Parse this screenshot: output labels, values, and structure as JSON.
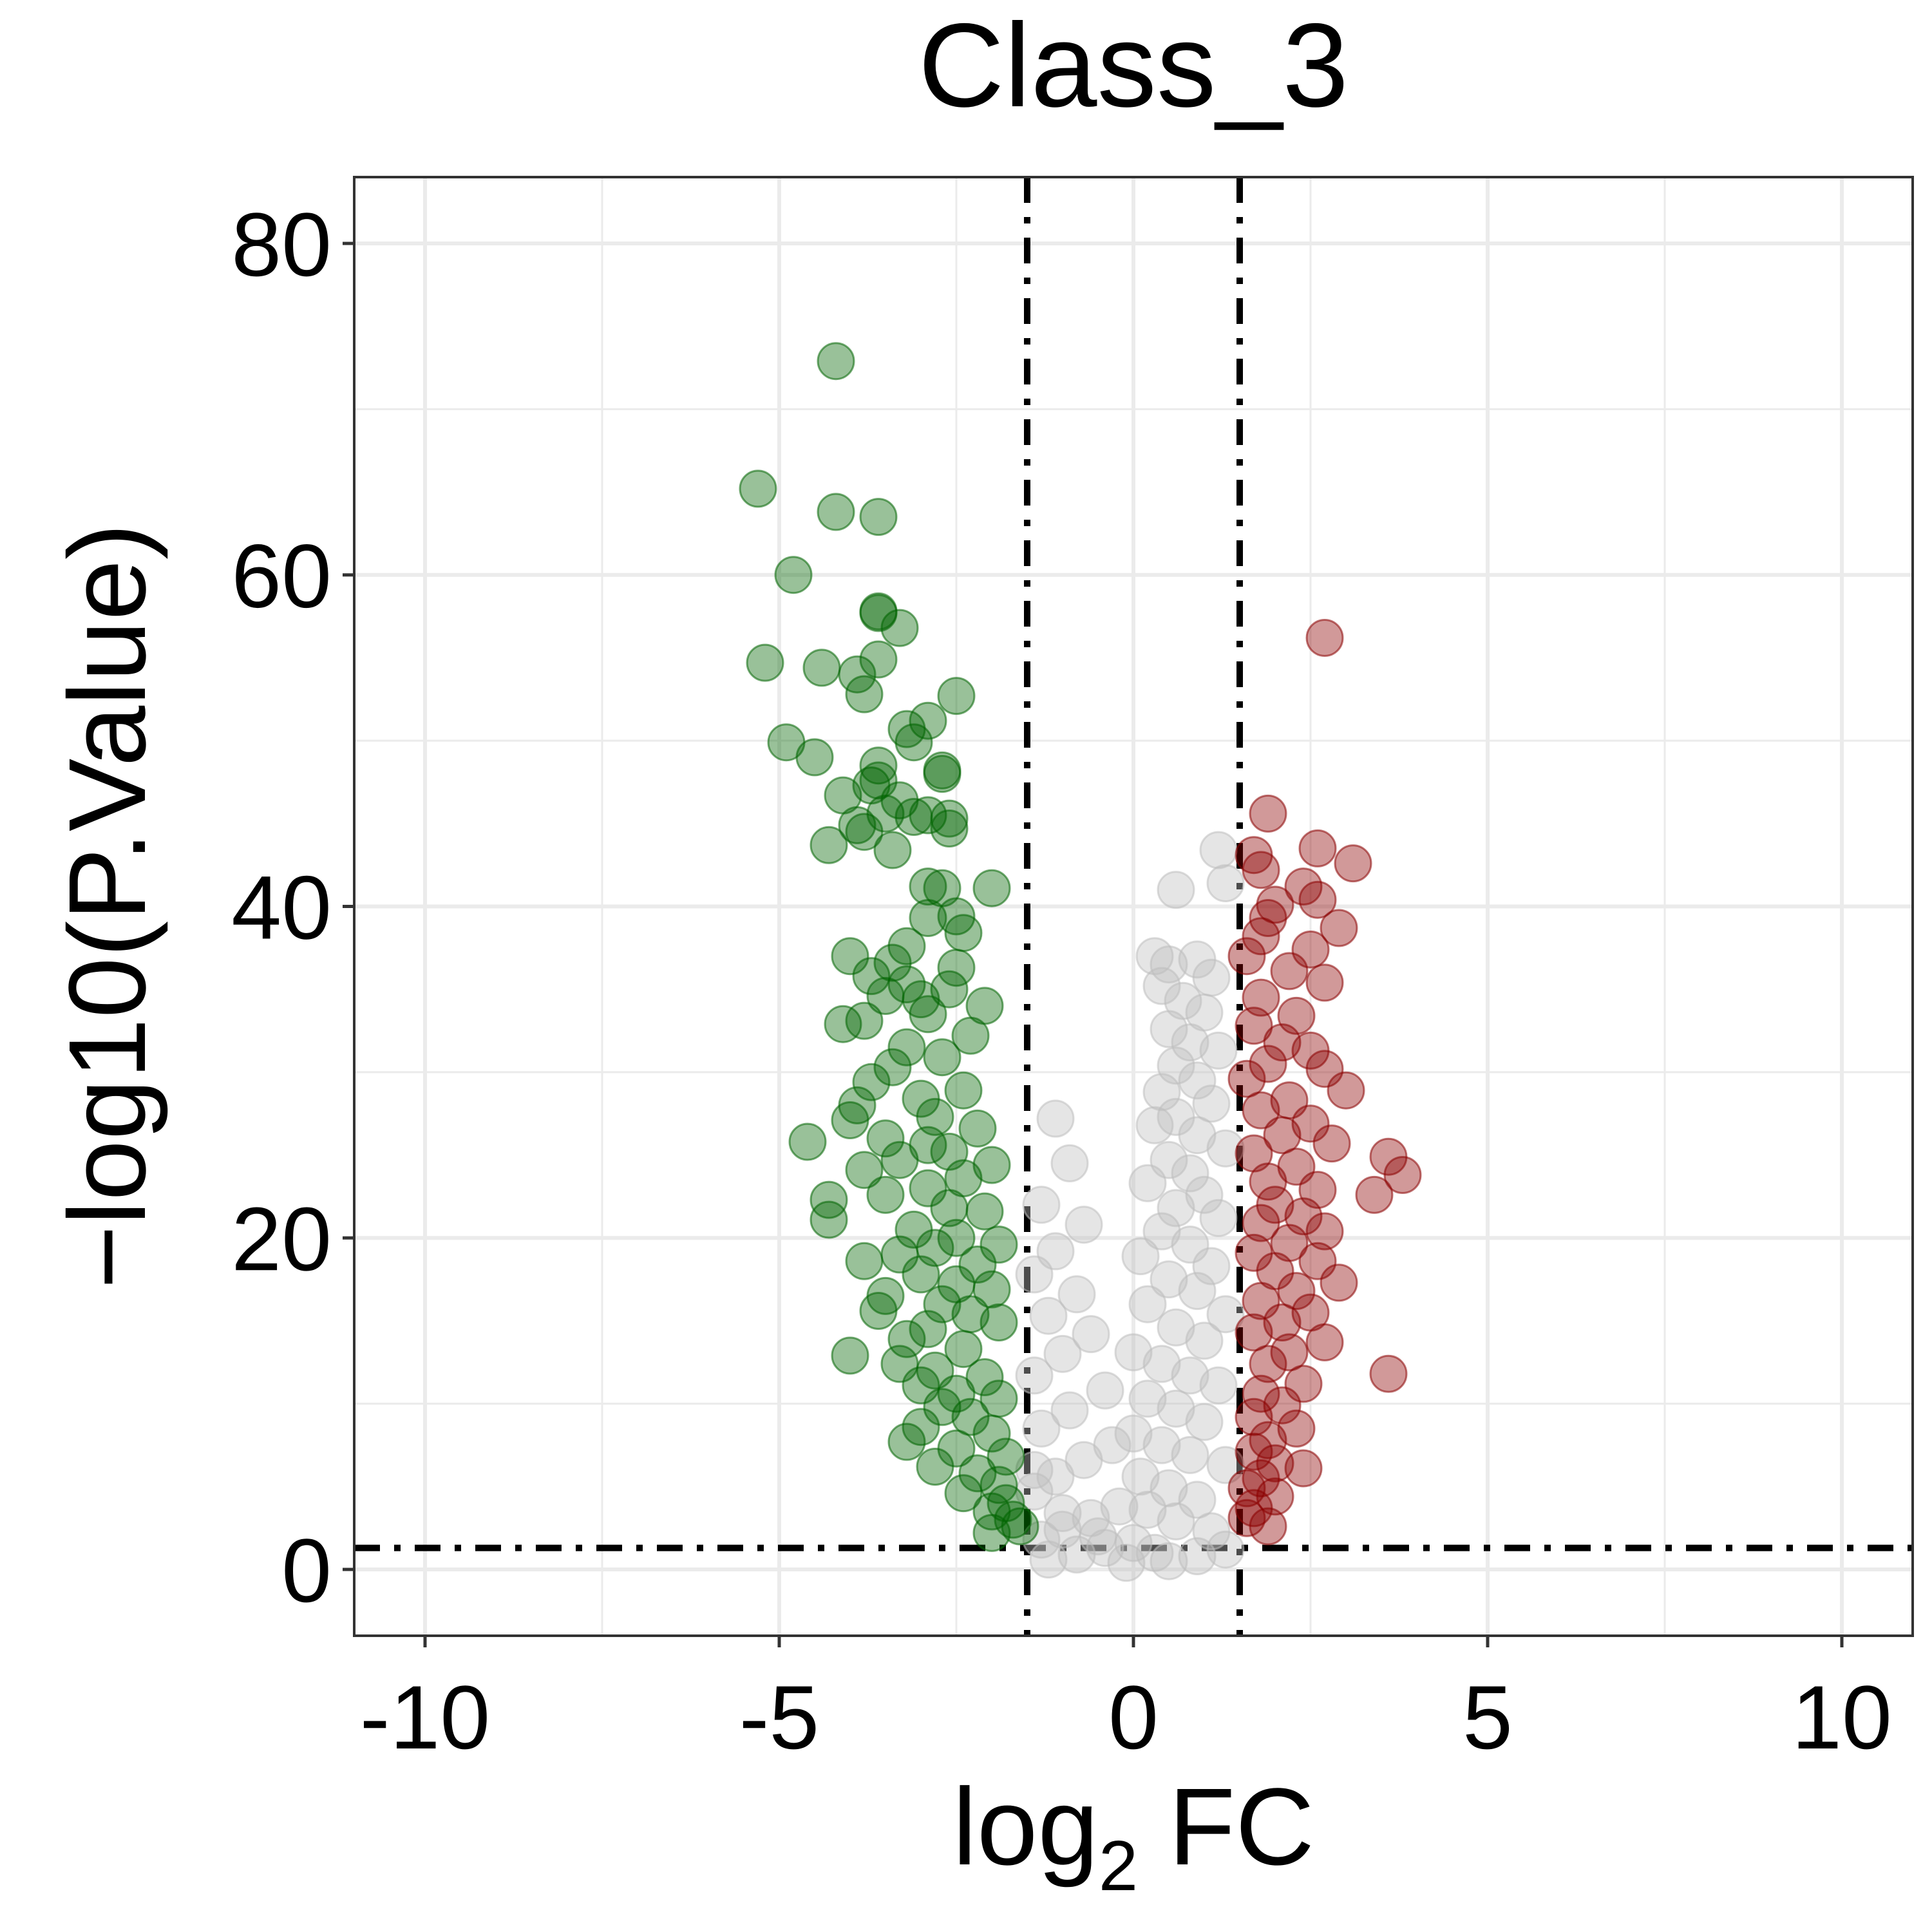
{
  "chart_data": {
    "type": "scatter",
    "title": "Class_3",
    "xlabel": "log2 FC",
    "xlabel_main": "log",
    "xlabel_sub": "2",
    "xlabel_tail": " FC",
    "ylabel": "−log10(P.Value)",
    "xlim": [
      -11,
      11
    ],
    "ylim": [
      -4,
      84
    ],
    "x_ticks": [
      -10,
      -5,
      0,
      5,
      10
    ],
    "y_ticks": [
      0,
      20,
      40,
      60,
      80
    ],
    "grid": true,
    "legend": "none",
    "thresholds": {
      "log2fc": [
        -1.5,
        1.5
      ],
      "neg_log10_p": 1.3
    },
    "colors": {
      "down": "#006400",
      "up": "#8B0000",
      "ns": "#BEBEBE",
      "grid": "#EBEBEB",
      "border": "#333333"
    },
    "series": [
      {
        "group": "down",
        "points": [
          [
            -4.2,
            72.9
          ],
          [
            -5.3,
            65.2
          ],
          [
            -4.2,
            63.8
          ],
          [
            -3.6,
            63.5
          ],
          [
            -4.8,
            60.0
          ],
          [
            -3.6,
            57.8
          ],
          [
            -3.6,
            57.7
          ],
          [
            -3.3,
            56.8
          ],
          [
            -5.2,
            54.7
          ],
          [
            -3.6,
            54.9
          ],
          [
            -4.4,
            54.4
          ],
          [
            -3.9,
            54.0
          ],
          [
            -3.8,
            52.8
          ],
          [
            -2.5,
            52.7
          ],
          [
            -2.9,
            51.2
          ],
          [
            -3.2,
            50.7
          ],
          [
            -3.1,
            49.9
          ],
          [
            -4.9,
            49.9
          ],
          [
            -4.5,
            49.0
          ],
          [
            -3.6,
            48.5
          ],
          [
            -2.7,
            48.2
          ],
          [
            -2.7,
            48.0
          ],
          [
            -3.6,
            47.6
          ],
          [
            -3.7,
            47.3
          ],
          [
            -4.1,
            46.7
          ],
          [
            -3.3,
            46.4
          ],
          [
            -3.5,
            45.6
          ],
          [
            -2.9,
            45.5
          ],
          [
            -3.1,
            45.4
          ],
          [
            -2.6,
            45.3
          ],
          [
            -3.9,
            44.9
          ],
          [
            -2.6,
            44.7
          ],
          [
            -3.8,
            44.5
          ],
          [
            -4.3,
            43.7
          ],
          [
            -3.4,
            43.4
          ],
          [
            -2.9,
            41.2
          ],
          [
            -2.7,
            41.1
          ],
          [
            -2.0,
            41.1
          ],
          [
            -2.5,
            39.4
          ],
          [
            -2.9,
            39.3
          ],
          [
            -2.4,
            38.4
          ],
          [
            -3.2,
            37.6
          ],
          [
            -4.0,
            37.0
          ],
          [
            -3.4,
            36.6
          ],
          [
            -2.5,
            36.3
          ],
          [
            -3.7,
            35.8
          ],
          [
            -3.2,
            35.3
          ],
          [
            -2.6,
            35.0
          ],
          [
            -3.5,
            34.6
          ],
          [
            -3.0,
            34.4
          ],
          [
            -2.1,
            34.0
          ],
          [
            -2.9,
            33.5
          ],
          [
            -3.8,
            33.1
          ],
          [
            -4.1,
            32.9
          ],
          [
            -2.3,
            32.2
          ],
          [
            -3.2,
            31.5
          ],
          [
            -2.7,
            30.9
          ],
          [
            -3.4,
            30.3
          ],
          [
            -3.7,
            29.4
          ],
          [
            -2.4,
            28.9
          ],
          [
            -3.0,
            28.4
          ],
          [
            -3.9,
            28.0
          ],
          [
            -2.8,
            27.3
          ],
          [
            -4.0,
            27.1
          ],
          [
            -2.2,
            26.6
          ],
          [
            -3.5,
            26.0
          ],
          [
            -2.9,
            25.6
          ],
          [
            -4.6,
            25.8
          ],
          [
            -2.6,
            25.2
          ],
          [
            -3.3,
            24.7
          ],
          [
            -2.0,
            24.4
          ],
          [
            -3.8,
            24.1
          ],
          [
            -2.4,
            23.6
          ],
          [
            -2.9,
            23.0
          ],
          [
            -3.5,
            22.6
          ],
          [
            -4.3,
            22.3
          ],
          [
            -2.6,
            21.8
          ],
          [
            -2.1,
            21.6
          ],
          [
            -4.3,
            21.1
          ],
          [
            -3.1,
            20.5
          ],
          [
            -2.5,
            20.0
          ],
          [
            -2.8,
            19.4
          ],
          [
            -1.9,
            19.6
          ],
          [
            -3.3,
            19.0
          ],
          [
            -3.8,
            18.6
          ],
          [
            -2.2,
            18.4
          ],
          [
            -3.0,
            17.8
          ],
          [
            -2.5,
            17.2
          ],
          [
            -2.0,
            16.9
          ],
          [
            -3.5,
            16.5
          ],
          [
            -2.7,
            16.0
          ],
          [
            -2.3,
            15.4
          ],
          [
            -3.6,
            15.6
          ],
          [
            -1.9,
            14.9
          ],
          [
            -2.9,
            14.5
          ],
          [
            -3.2,
            13.9
          ],
          [
            -2.4,
            13.3
          ],
          [
            -4.0,
            12.9
          ],
          [
            -3.3,
            12.4
          ],
          [
            -2.8,
            12.0
          ],
          [
            -2.1,
            11.6
          ],
          [
            -3.0,
            11.1
          ],
          [
            -2.5,
            10.6
          ],
          [
            -1.9,
            10.3
          ],
          [
            -2.7,
            9.8
          ],
          [
            -2.3,
            9.2
          ],
          [
            -3.0,
            8.6
          ],
          [
            -2.0,
            8.2
          ],
          [
            -3.2,
            7.7
          ],
          [
            -2.5,
            7.3
          ],
          [
            -1.8,
            6.8
          ],
          [
            -2.8,
            6.2
          ],
          [
            -2.2,
            5.8
          ],
          [
            -1.9,
            5.1
          ],
          [
            -2.4,
            4.6
          ],
          [
            -1.8,
            4.0
          ],
          [
            -2.0,
            3.5
          ],
          [
            -1.7,
            3.0
          ],
          [
            -1.6,
            2.6
          ],
          [
            -2.0,
            2.2
          ]
        ]
      },
      {
        "group": "up",
        "points": [
          [
            2.7,
            56.2
          ],
          [
            1.9,
            45.6
          ],
          [
            2.6,
            43.5
          ],
          [
            3.1,
            42.6
          ],
          [
            1.7,
            43.1
          ],
          [
            1.8,
            42.2
          ],
          [
            2.4,
            41.2
          ],
          [
            2.0,
            40.1
          ],
          [
            2.6,
            40.4
          ],
          [
            1.9,
            39.3
          ],
          [
            2.9,
            38.7
          ],
          [
            1.8,
            38.2
          ],
          [
            2.5,
            37.4
          ],
          [
            1.6,
            37.0
          ],
          [
            2.2,
            36.1
          ],
          [
            2.7,
            35.4
          ],
          [
            1.8,
            34.5
          ],
          [
            2.3,
            33.4
          ],
          [
            1.7,
            32.8
          ],
          [
            2.1,
            31.8
          ],
          [
            2.5,
            31.3
          ],
          [
            1.9,
            30.5
          ],
          [
            2.7,
            30.2
          ],
          [
            1.6,
            29.6
          ],
          [
            3.0,
            28.9
          ],
          [
            2.2,
            28.3
          ],
          [
            1.8,
            27.7
          ],
          [
            2.5,
            26.9
          ],
          [
            2.1,
            26.2
          ],
          [
            2.8,
            25.7
          ],
          [
            1.7,
            25.1
          ],
          [
            3.6,
            24.9
          ],
          [
            2.3,
            24.3
          ],
          [
            3.8,
            23.8
          ],
          [
            1.9,
            23.4
          ],
          [
            2.6,
            22.9
          ],
          [
            3.4,
            22.6
          ],
          [
            2.0,
            22.0
          ],
          [
            2.4,
            21.3
          ],
          [
            1.8,
            20.9
          ],
          [
            2.7,
            20.4
          ],
          [
            2.2,
            19.7
          ],
          [
            1.7,
            19.1
          ],
          [
            2.6,
            18.6
          ],
          [
            2.0,
            18.0
          ],
          [
            2.9,
            17.3
          ],
          [
            2.3,
            16.8
          ],
          [
            1.8,
            16.2
          ],
          [
            2.5,
            15.5
          ],
          [
            2.1,
            14.9
          ],
          [
            1.7,
            14.3
          ],
          [
            2.7,
            13.7
          ],
          [
            2.2,
            13.1
          ],
          [
            1.9,
            12.4
          ],
          [
            3.6,
            11.8
          ],
          [
            2.4,
            11.2
          ],
          [
            1.8,
            10.6
          ],
          [
            2.1,
            9.9
          ],
          [
            1.7,
            9.2
          ],
          [
            2.3,
            8.5
          ],
          [
            1.9,
            7.8
          ],
          [
            1.7,
            7.1
          ],
          [
            2.0,
            6.4
          ],
          [
            2.4,
            6.1
          ],
          [
            1.8,
            5.5
          ],
          [
            1.6,
            4.9
          ],
          [
            2.0,
            4.4
          ],
          [
            1.7,
            3.7
          ],
          [
            1.6,
            3.1
          ],
          [
            1.9,
            2.6
          ]
        ]
      },
      {
        "group": "ns",
        "points": [
          [
            1.2,
            43.4
          ],
          [
            1.3,
            41.4
          ],
          [
            0.6,
            41.0
          ],
          [
            0.3,
            37.0
          ],
          [
            0.5,
            36.5
          ],
          [
            0.9,
            36.8
          ],
          [
            1.1,
            35.7
          ],
          [
            0.4,
            35.2
          ],
          [
            0.7,
            34.3
          ],
          [
            1.0,
            33.6
          ],
          [
            0.5,
            32.6
          ],
          [
            0.8,
            31.8
          ],
          [
            1.2,
            31.3
          ],
          [
            0.6,
            30.4
          ],
          [
            0.9,
            29.5
          ],
          [
            0.4,
            28.8
          ],
          [
            1.1,
            28.1
          ],
          [
            0.6,
            27.3
          ],
          [
            0.3,
            26.8
          ],
          [
            0.9,
            26.2
          ],
          [
            1.3,
            25.4
          ],
          [
            0.5,
            24.7
          ],
          [
            0.8,
            23.9
          ],
          [
            0.2,
            23.3
          ],
          [
            1.0,
            22.6
          ],
          [
            0.6,
            21.8
          ],
          [
            1.2,
            21.2
          ],
          [
            0.4,
            20.4
          ],
          [
            0.8,
            19.6
          ],
          [
            0.1,
            18.9
          ],
          [
            1.1,
            18.3
          ],
          [
            0.5,
            17.5
          ],
          [
            0.9,
            16.8
          ],
          [
            0.2,
            16.0
          ],
          [
            1.3,
            15.4
          ],
          [
            0.6,
            14.6
          ],
          [
            1.0,
            13.8
          ],
          [
            0.0,
            13.1
          ],
          [
            0.4,
            12.4
          ],
          [
            0.8,
            11.7
          ],
          [
            1.2,
            11.1
          ],
          [
            0.2,
            10.3
          ],
          [
            0.6,
            9.7
          ],
          [
            1.0,
            8.9
          ],
          [
            0.0,
            8.2
          ],
          [
            0.4,
            7.5
          ],
          [
            0.8,
            6.9
          ],
          [
            1.3,
            6.3
          ],
          [
            0.1,
            5.6
          ],
          [
            0.5,
            4.9
          ],
          [
            0.9,
            4.2
          ],
          [
            0.2,
            3.6
          ],
          [
            0.6,
            2.9
          ],
          [
            1.1,
            2.3
          ],
          [
            0.0,
            1.6
          ],
          [
            0.3,
            1.0
          ],
          [
            -1.1,
            27.2
          ],
          [
            -0.9,
            24.5
          ],
          [
            -1.3,
            22.0
          ],
          [
            -0.7,
            20.8
          ],
          [
            -1.1,
            19.2
          ],
          [
            -1.4,
            17.8
          ],
          [
            -0.8,
            16.6
          ],
          [
            -1.2,
            15.3
          ],
          [
            -0.6,
            14.2
          ],
          [
            -1.0,
            13.0
          ],
          [
            -1.4,
            11.7
          ],
          [
            -0.4,
            10.8
          ],
          [
            -0.9,
            9.6
          ],
          [
            -1.3,
            8.5
          ],
          [
            -0.3,
            7.5
          ],
          [
            -0.7,
            6.6
          ],
          [
            -1.1,
            5.6
          ],
          [
            -1.4,
            4.7
          ],
          [
            -0.2,
            3.8
          ],
          [
            -0.6,
            3.1
          ],
          [
            -1.0,
            2.4
          ],
          [
            -1.3,
            1.8
          ],
          [
            -0.4,
            1.3
          ],
          [
            -0.8,
            0.9
          ],
          [
            -1.2,
            0.6
          ],
          [
            -0.1,
            0.4
          ],
          [
            0.5,
            0.5
          ],
          [
            0.9,
            0.8
          ],
          [
            1.3,
            1.2
          ],
          [
            -0.5,
            2.0
          ],
          [
            -1.0,
            3.4
          ],
          [
            -1.4,
            6.0
          ]
        ]
      }
    ]
  }
}
